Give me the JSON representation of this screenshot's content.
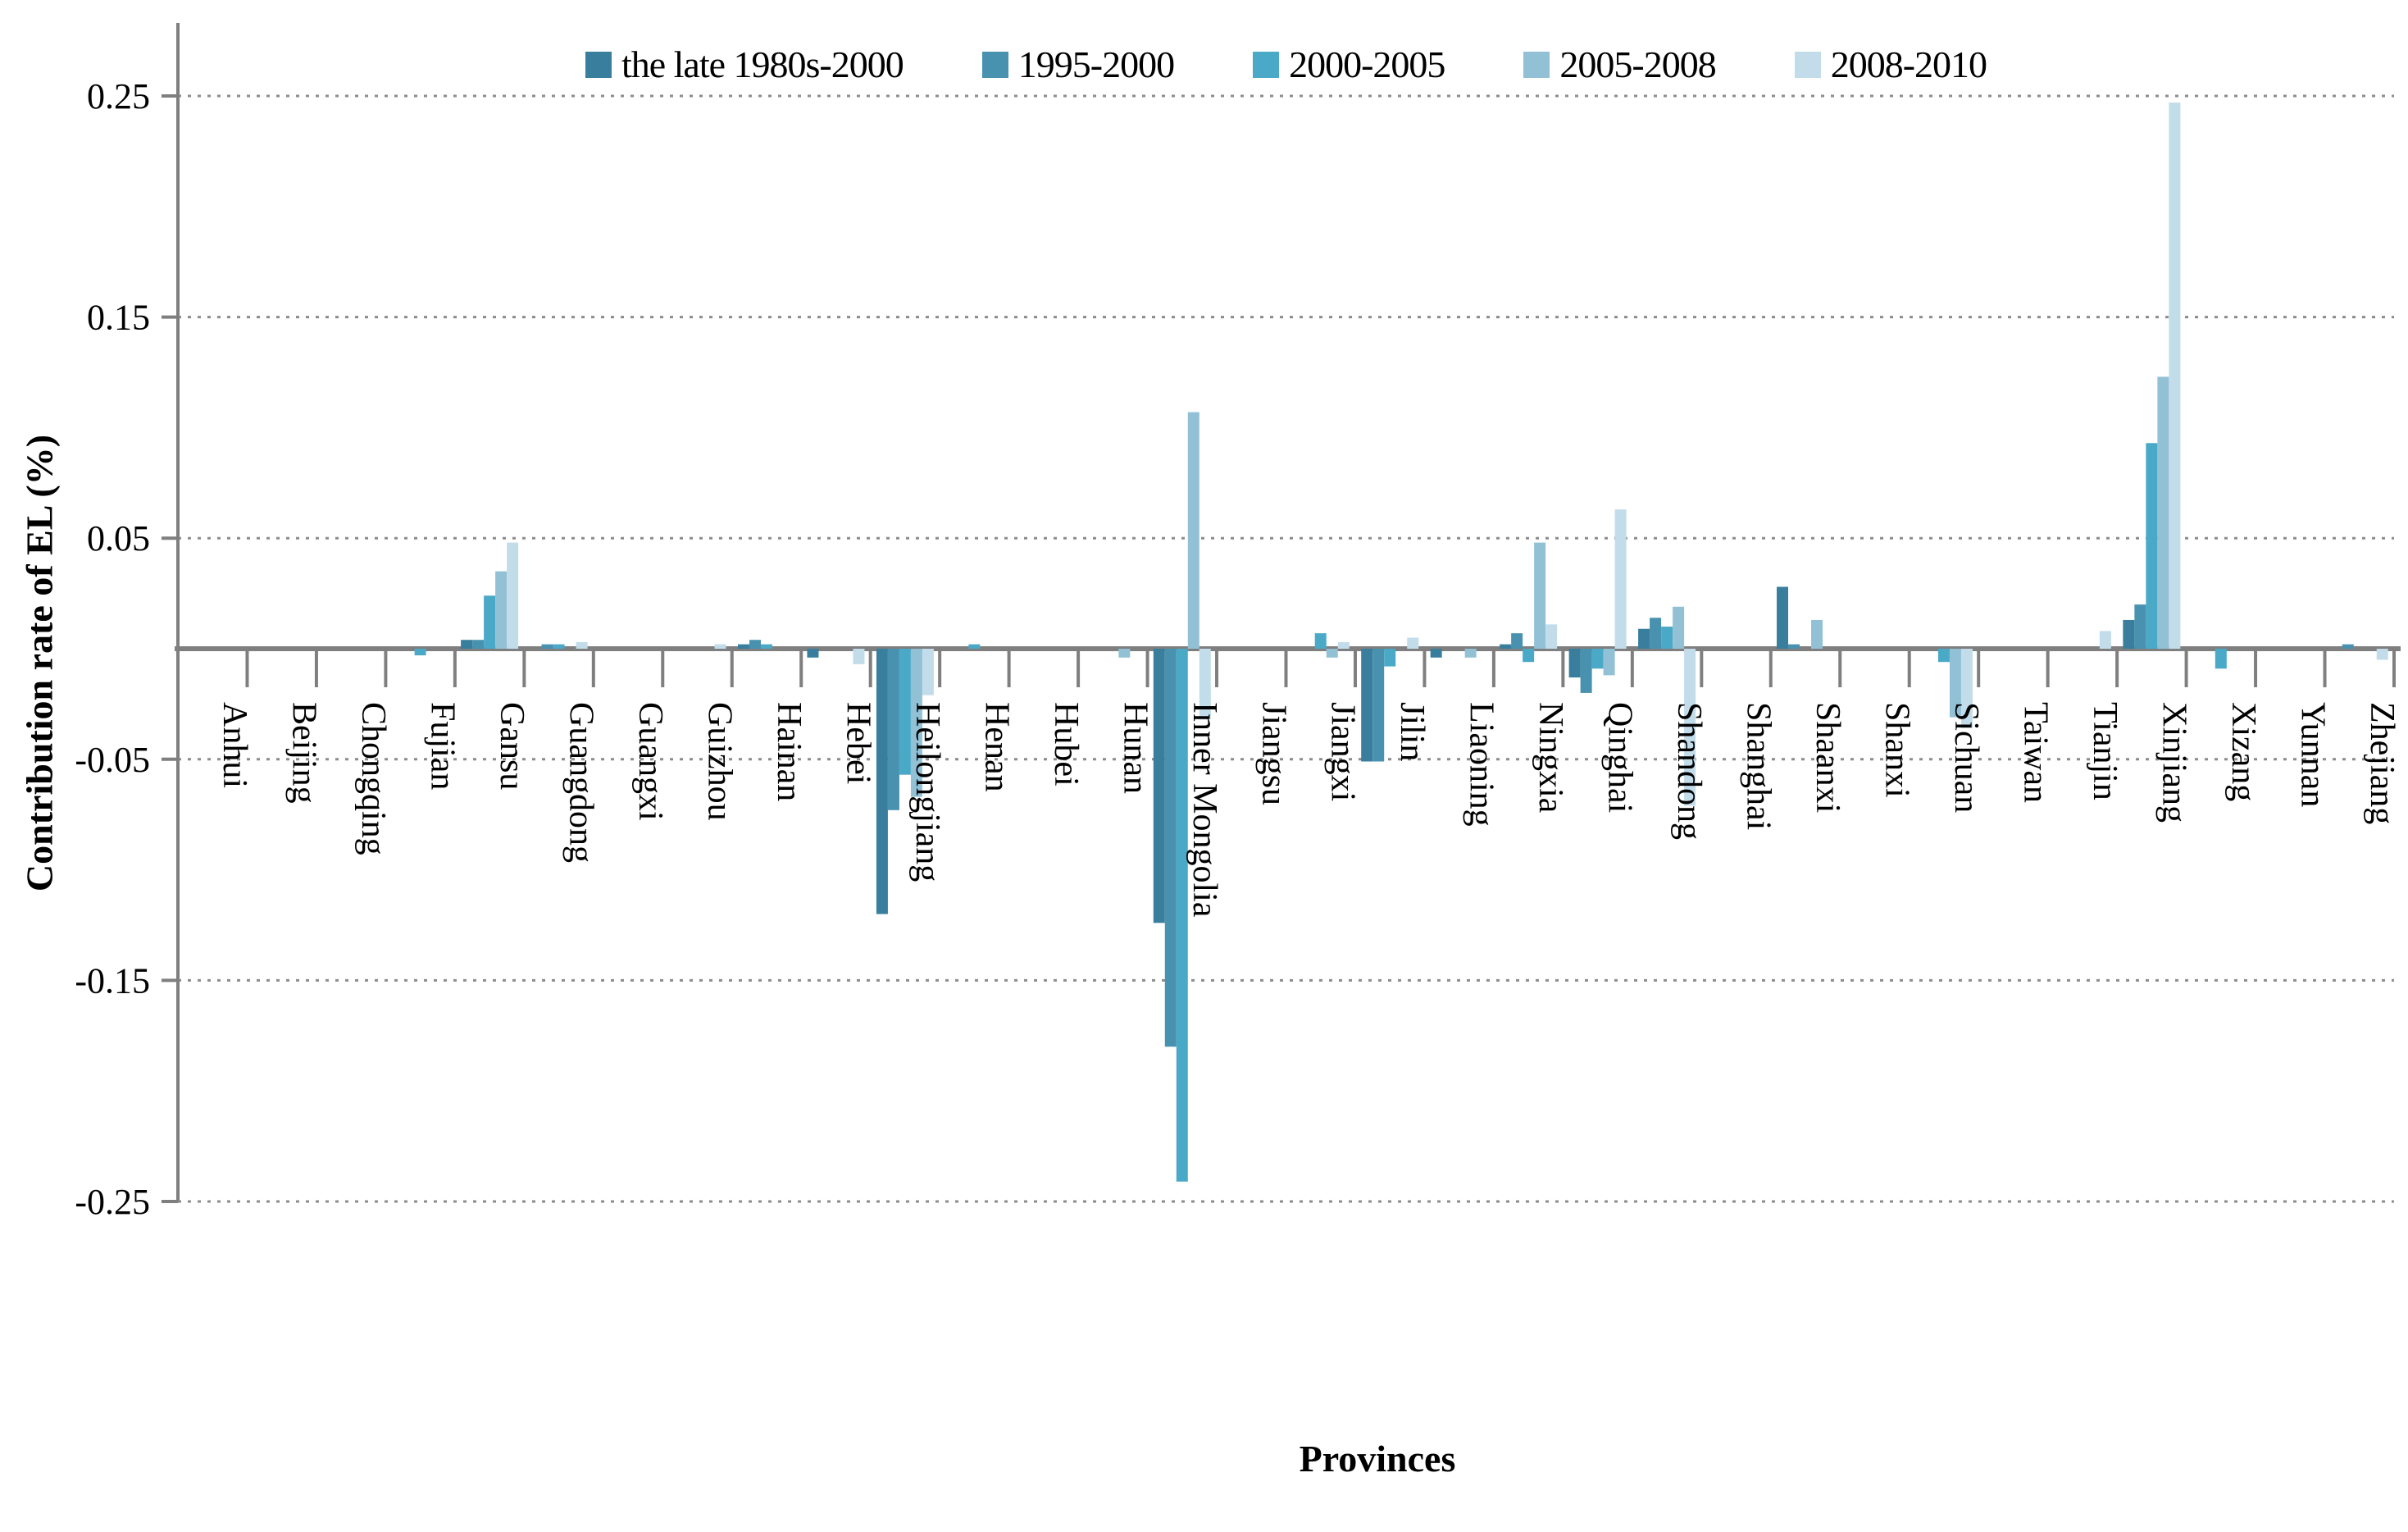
{
  "chart_data": {
    "type": "bar",
    "title": "",
    "xlabel": "Provinces",
    "ylabel": "Contribution rate of EL (%)",
    "ylim": [
      -0.25,
      0.25
    ],
    "yticks": [
      0.25,
      0.15,
      0.05,
      -0.05,
      -0.15,
      -0.25
    ],
    "grid": "horizontal-dotted",
    "legend_position": "top-center",
    "axis_color": "#7f7f7f",
    "gridline_color": "#8c8c8c",
    "categories": [
      "Anhui",
      "Beijing",
      "Chongqing",
      "Fujian",
      "Gansu",
      "Guangdong",
      "Guangxi",
      "Guizhou",
      "Hainan",
      "Hebei",
      "Heilongjiang",
      "Henan",
      "Hubei",
      "Hunan",
      "Inner Mongolia",
      "Jiangsu",
      "Jiangxi",
      "Jilin",
      "Liaoning",
      "Ningxia",
      "Qinghai",
      "Shandong",
      "Shanghai",
      "Shaanxi",
      "Shanxi",
      "Sichuan",
      "Taiwan",
      "Tianjin",
      "Xinjiang",
      "Xizang",
      "Yunnan",
      "Zhejiang"
    ],
    "series": [
      {
        "name": "the late 1980s-2000",
        "color": "#397f9d",
        "values": [
          0,
          0,
          0,
          0,
          0.004,
          0,
          0,
          0,
          0.002,
          -0.004,
          -0.12,
          0,
          0,
          0,
          -0.124,
          0,
          0,
          -0.051,
          -0.004,
          0.002,
          -0.013,
          0.009,
          0,
          0.028,
          0,
          0,
          0,
          0,
          0.013,
          0,
          0,
          0
        ]
      },
      {
        "name": "1995-2000",
        "color": "#4992af",
        "values": [
          0,
          0,
          0,
          0,
          0.004,
          0.002,
          0,
          0,
          0.004,
          0,
          -0.073,
          0,
          0,
          0,
          -0.18,
          0,
          0,
          -0.051,
          0,
          0.007,
          -0.02,
          0.014,
          0,
          0.002,
          0,
          0,
          0,
          0,
          0.02,
          0,
          0,
          0.002
        ]
      },
      {
        "name": "2000-2005",
        "color": "#4ba9c8",
        "values": [
          0,
          0,
          0,
          -0.003,
          0.024,
          0.002,
          0,
          0,
          0.002,
          0,
          -0.057,
          0.002,
          0,
          0,
          -0.241,
          0,
          0.007,
          -0.008,
          0,
          -0.006,
          -0.009,
          0.01,
          0,
          0,
          0,
          -0.006,
          0,
          0,
          0.093,
          -0.009,
          0,
          0
        ]
      },
      {
        "name": "2005-2008",
        "color": "#92c1d6",
        "values": [
          0,
          0,
          0,
          0,
          0.035,
          0,
          0,
          0,
          0,
          0,
          -0.067,
          0,
          0,
          -0.004,
          0.107,
          0,
          -0.004,
          0,
          -0.004,
          0.048,
          -0.012,
          0.019,
          0,
          0.013,
          0,
          -0.031,
          0,
          0,
          0.123,
          0,
          0,
          0
        ]
      },
      {
        "name": "2008-2010",
        "color": "#c3dcea",
        "values": [
          0,
          0,
          0,
          0,
          0.048,
          0.003,
          0,
          0.002,
          0,
          -0.007,
          -0.021,
          0,
          0,
          0,
          -0.032,
          0,
          0.003,
          0.005,
          0,
          0.011,
          0.063,
          -0.071,
          0,
          0,
          0,
          -0.036,
          0,
          0.008,
          0.247,
          0,
          0,
          -0.005
        ]
      }
    ]
  }
}
